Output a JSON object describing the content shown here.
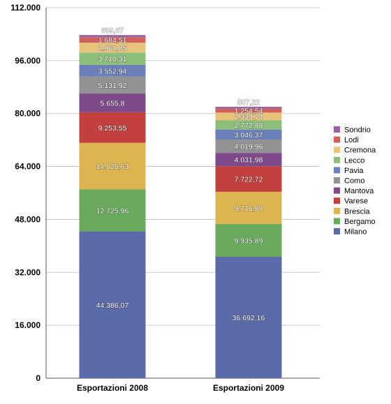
{
  "chart_data": {
    "type": "bar",
    "stacked": true,
    "categories": [
      "Esportazioni 2008",
      "Esportazioni 2009"
    ],
    "series": [
      {
        "name": "Milano",
        "color": "#5b6aa8",
        "values": [
          44386.07,
          36692.16
        ],
        "labels": [
          "44.386,07",
          "36.692,16"
        ]
      },
      {
        "name": "Bergamo",
        "color": "#6aaa5e",
        "values": [
          12725.96,
          9935.89
        ],
        "labels": [
          "12.725,96",
          "9.935,89"
        ]
      },
      {
        "name": "Brescia",
        "color": "#ddb550",
        "values": [
          14026.63,
          9716.88
        ],
        "labels": [
          "14.026,63",
          "9.716,88"
        ]
      },
      {
        "name": "Varese",
        "color": "#c2403d",
        "values": [
          9253.55,
          7722.72
        ],
        "labels": [
          "9.253,55",
          "7.722,72"
        ]
      },
      {
        "name": "Mantova",
        "color": "#7e4a8c",
        "values": [
          5655.8,
          4031.98
        ],
        "labels": [
          "5.655,8",
          "4.031,98"
        ]
      },
      {
        "name": "Como",
        "color": "#929292",
        "values": [
          5131.92,
          4019.96
        ],
        "labels": [
          "5.131,92",
          "4.019,96"
        ]
      },
      {
        "name": "Pavia",
        "color": "#6b7fb8",
        "values": [
          3552.94,
          3046.37
        ],
        "labels": [
          "3.552,94",
          "3.046,37"
        ]
      },
      {
        "name": "Lecco",
        "color": "#8cc07a",
        "values": [
          3710.31,
          2772.88
        ],
        "labels": [
          "3.710,31",
          "2.772,88"
        ]
      },
      {
        "name": "Cremona",
        "color": "#e8c47a",
        "values": [
          2960.05,
          2339.74
        ],
        "labels": [
          "2.960,05",
          "2.339,74"
        ]
      },
      {
        "name": "Lodi",
        "color": "#d0625d",
        "values": [
          1684.51,
          1254.54
        ],
        "labels": [
          "1.684,51",
          "1.254,54"
        ]
      },
      {
        "name": "Sondrio",
        "color": "#9a62a6",
        "values": [
          639.67,
          507.22
        ],
        "labels": [
          "639,67",
          "507,22"
        ]
      }
    ],
    "ylim": [
      0,
      112000
    ],
    "yticks": [
      0,
      16000,
      32000,
      48000,
      64000,
      80000,
      96000,
      112000
    ],
    "ytick_labels": [
      "0",
      "16.000",
      "32.000",
      "48.000",
      "64.000",
      "80.000",
      "96.000",
      "112.000"
    ],
    "grid": true,
    "legend_position": "right",
    "legend_order": [
      "Sondrio",
      "Lodi",
      "Cremona",
      "Lecco",
      "Pavia",
      "Como",
      "Mantova",
      "Varese",
      "Brescia",
      "Bergamo",
      "Milano"
    ],
    "top_label_color": "#7e3a8c"
  }
}
